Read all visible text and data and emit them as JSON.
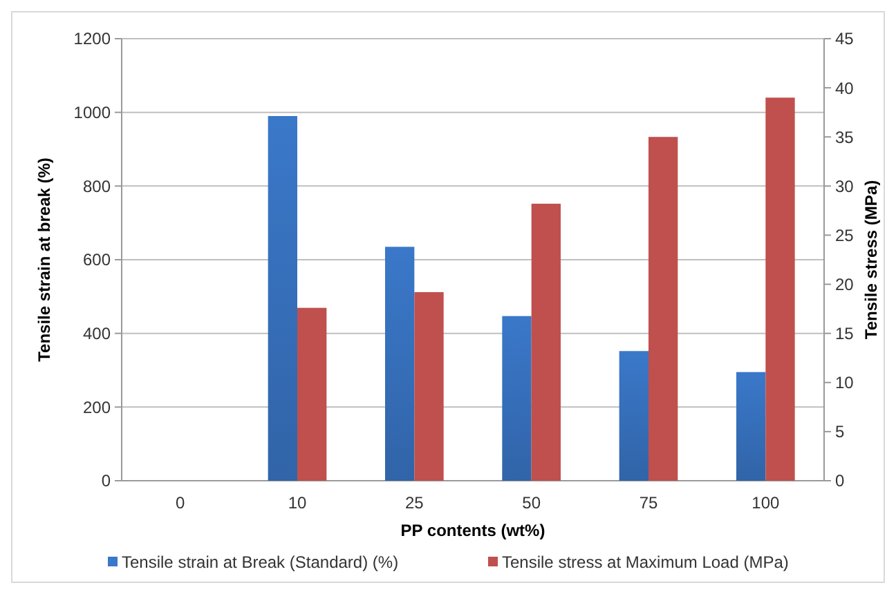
{
  "chart_data": {
    "type": "bar",
    "xlabel": "PP contents (wt%)",
    "ylabel": "Tensile strain at break (%)",
    "y2label": "Tensile stress (MPa)",
    "categories": [
      "0",
      "10",
      "25",
      "50",
      "75",
      "100"
    ],
    "series": [
      {
        "name": "Tensile strain at Break (Standard) (%)",
        "color": "#3a78c9",
        "values": [
          null,
          990,
          635,
          447,
          352,
          295
        ]
      },
      {
        "name": "Tensile stress at Maximum Load (MPa)",
        "color": "#c0504d",
        "axis": "y2",
        "values": [
          null,
          17.6,
          19.2,
          28.2,
          35,
          39
        ]
      }
    ],
    "ylim": [
      0,
      1200
    ],
    "yticks": [
      0,
      200,
      400,
      600,
      800,
      1000,
      1200
    ],
    "y2lim": [
      0,
      45
    ],
    "y2ticks": [
      0,
      5,
      10,
      15,
      20,
      25,
      30,
      35,
      40,
      45
    ],
    "grid": "y",
    "legend": "bottom"
  }
}
